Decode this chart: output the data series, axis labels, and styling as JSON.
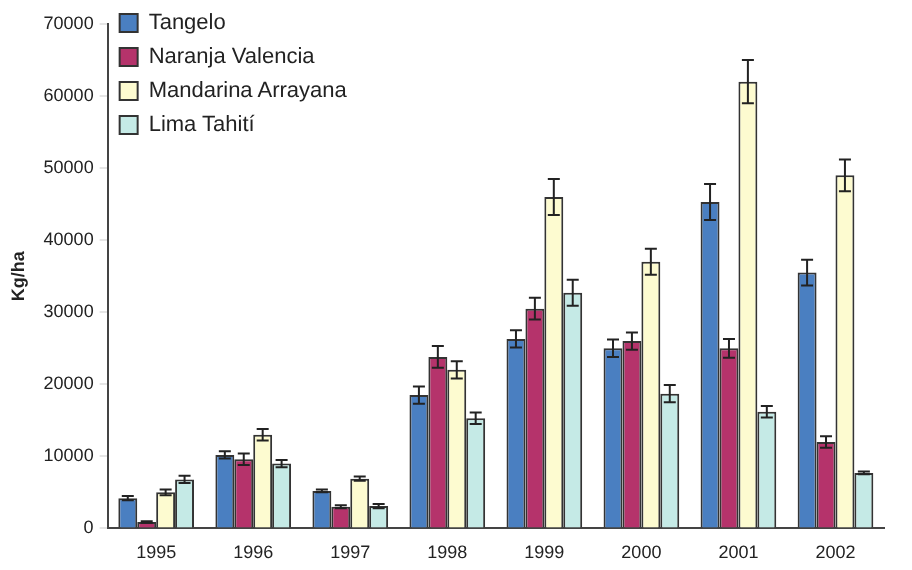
{
  "chart_data": {
    "type": "bar",
    "ylabel": "Kg/ha",
    "categories": [
      "1995",
      "1996",
      "1997",
      "1998",
      "1999",
      "2000",
      "2001",
      "2002"
    ],
    "ylim": [
      0,
      70000
    ],
    "yticks": [
      0,
      10000,
      20000,
      30000,
      40000,
      50000,
      60000,
      70000
    ],
    "grid": false,
    "legend": "top left",
    "series": [
      {
        "name": "Tangelo",
        "color": "#4a7fc1",
        "values": [
          4200,
          10200,
          5200,
          18500,
          26300,
          25000,
          45300,
          35500
        ],
        "errors": [
          300,
          500,
          200,
          1200,
          1200,
          1200,
          2500,
          1800
        ]
      },
      {
        "name": "Naranja Valencia",
        "color": "#b5336b",
        "values": [
          900,
          9600,
          3000,
          23800,
          30500,
          26000,
          25000,
          12000
        ],
        "errors": [
          100,
          800,
          200,
          1500,
          1500,
          1200,
          1300,
          800
        ]
      },
      {
        "name": "Mandarina Arrayana",
        "color": "#fdfbd0",
        "values": [
          5000,
          13000,
          6900,
          22000,
          46000,
          37000,
          62000,
          49000
        ],
        "errors": [
          400,
          800,
          300,
          1200,
          2500,
          1800,
          3000,
          2200
        ]
      },
      {
        "name": "Lima Tahití",
        "color": "#c5eae6",
        "values": [
          6800,
          9000,
          3100,
          15300,
          32700,
          18700,
          16200,
          7700
        ],
        "errors": [
          500,
          500,
          300,
          800,
          1800,
          1200,
          800,
          200
        ]
      }
    ]
  }
}
